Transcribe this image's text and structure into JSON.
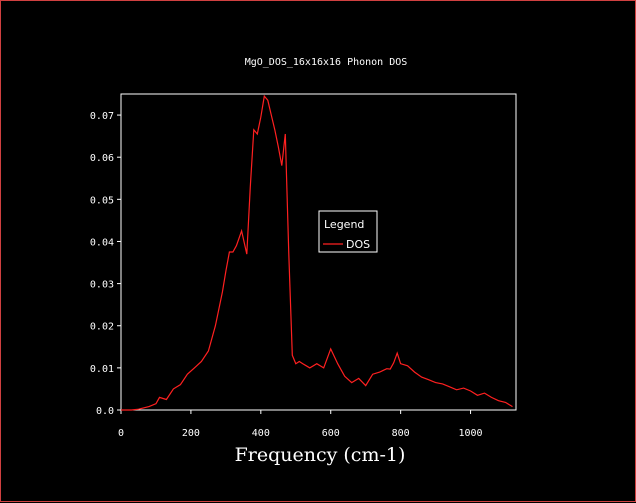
{
  "colors": {
    "background": "#000000",
    "axes": "#ffffff",
    "series": "#ff2020",
    "frame_border": "#d04040"
  },
  "chart_data": {
    "type": "line",
    "title": "MgO_DOS_16x16x16 Phonon DOS",
    "xlabel": "Frequency (cm-1)",
    "ylabel": "",
    "xlim": [
      0,
      1130
    ],
    "ylim": [
      0,
      0.075
    ],
    "xticks": [
      0,
      200,
      400,
      600,
      800,
      1000
    ],
    "xtick_labels": [
      "0",
      "200",
      "400",
      "600",
      "800",
      "1000"
    ],
    "yticks": [
      0,
      0.01,
      0.02,
      0.03,
      0.04,
      0.05,
      0.06,
      0.07
    ],
    "ytick_labels": [
      "0.0",
      "0.01",
      "0.02",
      "0.03",
      "0.04",
      "0.05",
      "0.06",
      "0.07"
    ],
    "grid": false,
    "legend": {
      "title": "Legend",
      "position": "center-right",
      "entries": [
        "DOS"
      ]
    },
    "series": [
      {
        "name": "DOS",
        "color": "#ff2020",
        "x": [
          0,
          30,
          50,
          80,
          100,
          110,
          130,
          150,
          170,
          190,
          210,
          230,
          250,
          270,
          290,
          300,
          310,
          320,
          330,
          345,
          360,
          370,
          380,
          390,
          400,
          410,
          420,
          430,
          440,
          450,
          460,
          470,
          480,
          490,
          500,
          510,
          520,
          530,
          540,
          560,
          580,
          600,
          620,
          640,
          660,
          680,
          700,
          720,
          740,
          760,
          770,
          780,
          790,
          800,
          820,
          840,
          860,
          880,
          900,
          920,
          940,
          960,
          980,
          1000,
          1020,
          1040,
          1060,
          1080,
          1100,
          1120
        ],
        "y": [
          0.0,
          0.0,
          0.0002,
          0.0008,
          0.0015,
          0.003,
          0.0025,
          0.005,
          0.006,
          0.0085,
          0.01,
          0.0115,
          0.014,
          0.02,
          0.028,
          0.033,
          0.0375,
          0.0375,
          0.039,
          0.0425,
          0.037,
          0.053,
          0.0665,
          0.0655,
          0.0695,
          0.0745,
          0.0735,
          0.07,
          0.0665,
          0.0625,
          0.058,
          0.0655,
          0.037,
          0.013,
          0.011,
          0.0115,
          0.011,
          0.0105,
          0.01,
          0.011,
          0.01,
          0.0145,
          0.011,
          0.008,
          0.0065,
          0.0075,
          0.0058,
          0.0085,
          0.009,
          0.0098,
          0.0097,
          0.0112,
          0.0135,
          0.011,
          0.0105,
          0.009,
          0.0078,
          0.0072,
          0.0065,
          0.0062,
          0.0055,
          0.0048,
          0.0052,
          0.0045,
          0.0035,
          0.004,
          0.003,
          0.0022,
          0.0018,
          0.0008
        ]
      }
    ]
  }
}
